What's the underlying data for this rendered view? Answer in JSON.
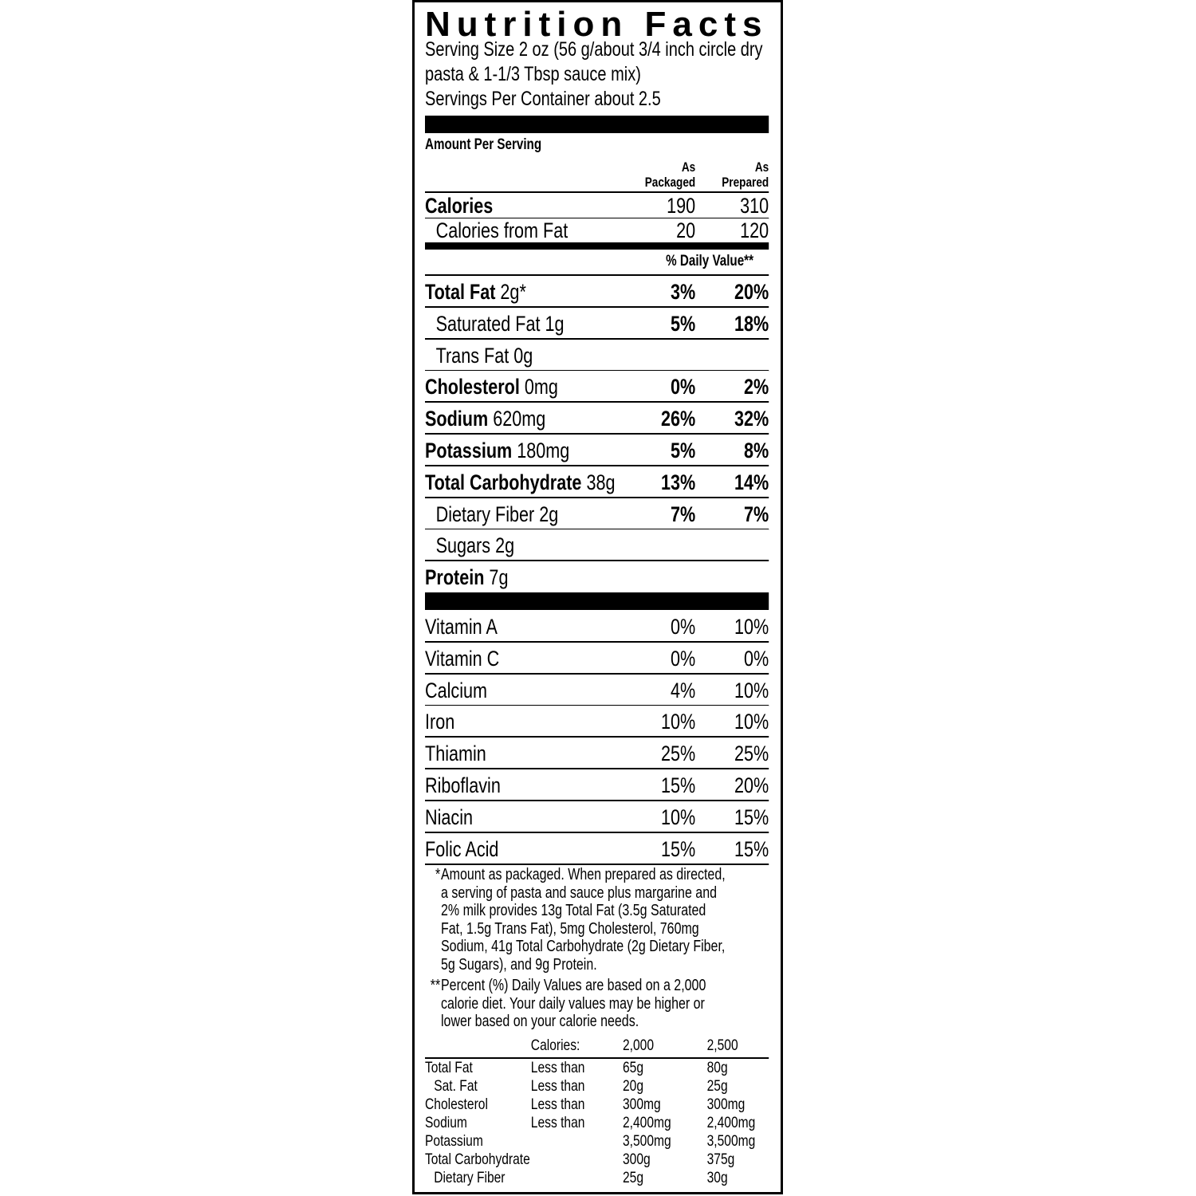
{
  "title": "Nutrition Facts",
  "serving": {
    "line1": "Serving Size 2 oz (56 g/about 3/4 inch circle dry",
    "line2": "pasta & 1-1/3 Tbsp sauce mix)",
    "line3": "Servings Per Container about 2.5"
  },
  "amount_per_serving": "Amount Per Serving",
  "columns": {
    "packaged": [
      "As",
      "Packaged"
    ],
    "prepared": [
      "As",
      "Prepared"
    ]
  },
  "calories": {
    "label": "Calories",
    "packaged": "190",
    "prepared": "310"
  },
  "calories_from_fat": {
    "label": "Calories from Fat",
    "packaged": "20",
    "prepared": "120"
  },
  "daily_value_header": "% Daily Value**",
  "nutrients": [
    {
      "name": "Total Fat",
      "amount": "2g*",
      "bold": true,
      "indent": false,
      "packaged": "3%",
      "prepared": "20%"
    },
    {
      "name": "Saturated Fat",
      "amount": "1g",
      "bold": false,
      "indent": true,
      "packaged": "5%",
      "prepared": "18%"
    },
    {
      "name": "Trans Fat",
      "amount": "0g",
      "bold": false,
      "indent": true,
      "packaged": "",
      "prepared": ""
    },
    {
      "name": "Cholesterol",
      "amount": "0mg",
      "bold": true,
      "indent": false,
      "packaged": "0%",
      "prepared": "2%"
    },
    {
      "name": "Sodium",
      "amount": "620mg",
      "bold": true,
      "indent": false,
      "packaged": "26%",
      "prepared": "32%"
    },
    {
      "name": "Potassium",
      "amount": "180mg",
      "bold": true,
      "indent": false,
      "packaged": "5%",
      "prepared": "8%"
    },
    {
      "name": "Total Carbohydrate",
      "amount": "38g",
      "bold": true,
      "indent": false,
      "packaged": "13%",
      "prepared": "14%"
    },
    {
      "name": "Dietary Fiber",
      "amount": "2g",
      "bold": false,
      "indent": true,
      "packaged": "7%",
      "prepared": "7%"
    },
    {
      "name": "Sugars",
      "amount": "2g",
      "bold": false,
      "indent": true,
      "packaged": "",
      "prepared": ""
    },
    {
      "name": "Protein",
      "amount": "7g",
      "bold": true,
      "indent": false,
      "packaged": "",
      "prepared": ""
    }
  ],
  "vitamins": [
    {
      "name": "Vitamin A",
      "packaged": "0%",
      "prepared": "10%"
    },
    {
      "name": "Vitamin C",
      "packaged": "0%",
      "prepared": "0%"
    },
    {
      "name": "Calcium",
      "packaged": "4%",
      "prepared": "10%"
    },
    {
      "name": "Iron",
      "packaged": "10%",
      "prepared": "10%"
    },
    {
      "name": "Thiamin",
      "packaged": "25%",
      "prepared": "25%"
    },
    {
      "name": "Riboflavin",
      "packaged": "15%",
      "prepared": "20%"
    },
    {
      "name": "Niacin",
      "packaged": "10%",
      "prepared": "15%"
    },
    {
      "name": "Folic Acid",
      "packaged": "15%",
      "prepared": "15%"
    }
  ],
  "footnotes": [
    {
      "mark": "*",
      "lines": [
        "Amount as packaged. When prepared as directed,",
        "a serving of pasta and sauce plus margarine and",
        "2% milk provides 13g Total Fat (3.5g Saturated",
        "Fat, 1.5g Trans Fat), 5mg Cholesterol, 760mg",
        "Sodium, 41g Total Carbohydrate (2g Dietary Fiber,",
        "5g Sugars), and 9g Protein."
      ]
    },
    {
      "mark": "**",
      "lines": [
        "Percent (%) Daily Values are based on a 2,000",
        "calorie diet. Your daily values may be higher or",
        "lower based on your calorie needs."
      ]
    }
  ],
  "dv_table": {
    "header": [
      "",
      "Calories:",
      "2,000",
      "2,500"
    ],
    "rows": [
      [
        "Total Fat",
        "Less than",
        "65g",
        "80g"
      ],
      [
        "Sat. Fat",
        "Less than",
        "20g",
        "25g"
      ],
      [
        "Cholesterol",
        "Less than",
        "300mg",
        "300mg"
      ],
      [
        "Sodium",
        "Less than",
        "2,400mg",
        "2,400mg"
      ],
      [
        "Potassium",
        "",
        "3,500mg",
        "3,500mg"
      ],
      [
        "Total Carbohydrate",
        "",
        "300g",
        "375g"
      ],
      [
        "Dietary Fiber",
        "",
        "25g",
        "30g"
      ]
    ]
  }
}
